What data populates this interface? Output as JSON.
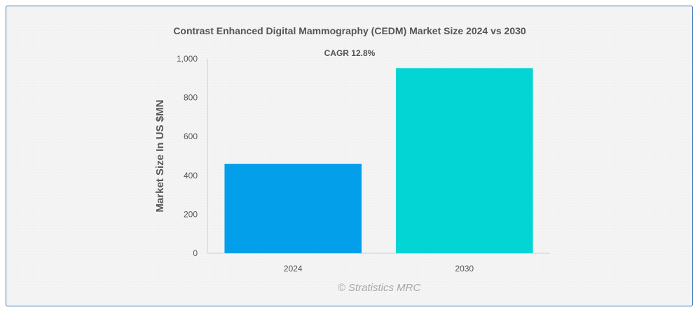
{
  "chart_data": {
    "type": "bar",
    "title": "Contrast Enhanced Digital Mammography (CEDM) Market Size 2024 vs 2030",
    "annotation": "CAGR 12.8%",
    "categories": [
      "2024",
      "2030"
    ],
    "values": [
      460,
      952
    ],
    "colors": [
      "#039fea",
      "#03d4d4"
    ],
    "xlabel": "",
    "ylabel": "Market Size In US $MN",
    "ylim": [
      0,
      1000
    ],
    "yticks": [
      0,
      200,
      400,
      600,
      800,
      1000
    ],
    "ytick_labels": [
      "0",
      "200",
      "400",
      "600",
      "800",
      "1,000"
    ],
    "grid": false,
    "legend": "none"
  },
  "watermark": "© Stratistics MRC"
}
